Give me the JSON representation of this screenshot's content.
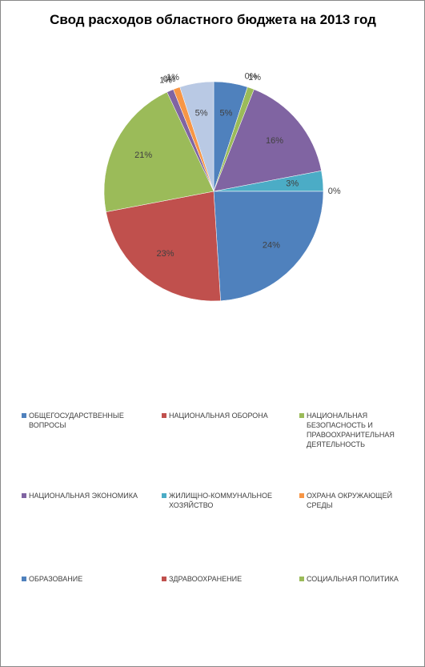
{
  "chart_data": {
    "type": "pie",
    "title": "Свод расходов областного бюджета на 2013 год",
    "categories": [
      "ОБЩЕГОСУДАРСТВЕННЫЕ ВОПРОСЫ",
      "НАЦИОНАЛЬНАЯ ОБОРОНА",
      "НАЦИОНАЛЬНАЯ БЕЗОПАСНОСТЬ И ПРАВООХРАНИТЕЛЬНАЯ ДЕЯТЕЛЬНОСТЬ",
      "НАЦИОНАЛЬНАЯ ЭКОНОМИКА",
      "ЖИЛИЩНО-КОММУНАЛЬНОЕ ХОЗЯЙСТВО",
      "ОХРАНА ОКРУЖАЮЩЕЙ СРЕДЫ",
      "ОБРАЗОВАНИЕ",
      "ЗДРАВООХРАНЕНИЕ",
      "СОЦИАЛЬНАЯ ПОЛИТИКА",
      null,
      null,
      null,
      null
    ],
    "values": [
      5,
      0,
      1,
      16,
      3,
      0,
      24,
      23,
      21,
      1,
      0,
      1,
      5
    ],
    "value_labels": [
      "5%",
      "0%",
      "1%",
      "16%",
      "3%",
      "0%",
      "24%",
      "23%",
      "21%",
      "1%",
      "0%",
      "1%",
      "5%"
    ],
    "colors": [
      "#4F81BD",
      "#C0504D",
      "#9BBB59",
      "#8064A2",
      "#4BACC6",
      "#F79646",
      "#4F81BD",
      "#C0504D",
      "#9BBB59",
      "#8064A2",
      "#4BACC6",
      "#F79646",
      "#B9C9E4"
    ]
  }
}
